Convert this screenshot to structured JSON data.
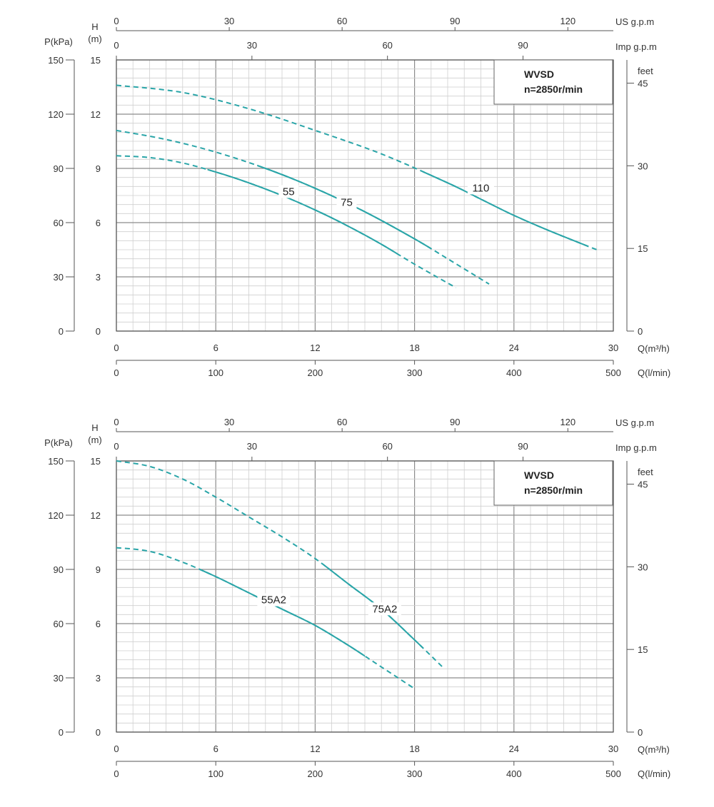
{
  "colors": {
    "curve": "#2aa5a8",
    "grid_major": "#8c8c8c",
    "grid_minor": "#cfcfcf",
    "axis": "#555555"
  },
  "chart_data": [
    {
      "type": "line",
      "info_box": {
        "line1": "WVSD",
        "line2": "n=2850r/min"
      },
      "axes": {
        "x_flow_m3h": {
          "label": "Q(m³/h)",
          "range": [
            0,
            30
          ],
          "ticks": [
            "0",
            "6",
            "12",
            "18",
            "24",
            "30"
          ]
        },
        "x_flow_lmin": {
          "label": "Q(l/min)",
          "range": [
            0,
            500
          ],
          "ticks": [
            "0",
            "100",
            "200",
            "300",
            "400",
            "500"
          ]
        },
        "x_us_gpm": {
          "label": "US g.p.m",
          "range": [
            0,
            132
          ],
          "ticks": [
            "0",
            "30",
            "60",
            "90",
            "120"
          ]
        },
        "x_imp_gpm": {
          "label": "Imp g.p.m",
          "range": [
            0,
            110
          ],
          "ticks": [
            "0",
            "30",
            "60",
            "90"
          ]
        },
        "y_head_m": {
          "label_top": "H",
          "label_bottom": "(m)",
          "range": [
            0,
            15
          ],
          "ticks": [
            "0",
            "3",
            "6",
            "9",
            "12",
            "15"
          ]
        },
        "y_pressure_kpa": {
          "label": "P(kPa)",
          "range": [
            0,
            150
          ],
          "ticks": [
            "0",
            "30",
            "60",
            "90",
            "120",
            "150"
          ]
        },
        "y_feet": {
          "label": "feet",
          "range": [
            0,
            49.2
          ],
          "ticks": [
            "0",
            "15",
            "30",
            "45"
          ]
        }
      },
      "series": [
        {
          "name": "55",
          "label_at": [
            10.4,
            7.6
          ],
          "x": [
            0,
            2,
            4,
            6,
            8,
            10,
            12,
            14,
            16,
            18,
            20.5
          ],
          "y": [
            9.7,
            9.6,
            9.3,
            8.8,
            8.2,
            7.5,
            6.7,
            5.8,
            4.8,
            3.7,
            2.4
          ],
          "solid_range": [
            5.5,
            17
          ]
        },
        {
          "name": "75",
          "label_at": [
            13.9,
            7.0
          ],
          "x": [
            0,
            3,
            6,
            9,
            12,
            15,
            18,
            20,
            22.5
          ],
          "y": [
            11.1,
            10.6,
            9.9,
            9.0,
            7.9,
            6.6,
            5.1,
            4.0,
            2.6
          ],
          "solid_range": [
            8.5,
            19
          ]
        },
        {
          "name": "110",
          "label_at": [
            22.0,
            7.8
          ],
          "x": [
            0,
            4,
            8,
            12,
            16,
            20,
            22,
            24,
            26,
            29
          ],
          "y": [
            13.6,
            13.2,
            12.3,
            11.1,
            9.8,
            8.2,
            7.3,
            6.4,
            5.6,
            4.5
          ],
          "solid_range": [
            18.5,
            28.5
          ]
        }
      ]
    },
    {
      "type": "line",
      "info_box": {
        "line1": "WVSD",
        "line2": "n=2850r/min"
      },
      "axes": {
        "x_flow_m3h": {
          "label": "Q(m³/h)",
          "range": [
            0,
            30
          ],
          "ticks": [
            "0",
            "6",
            "12",
            "18",
            "24",
            "30"
          ]
        },
        "x_flow_lmin": {
          "label": "Q(l/min)",
          "range": [
            0,
            500
          ],
          "ticks": [
            "0",
            "100",
            "200",
            "300",
            "400",
            "500"
          ]
        },
        "x_us_gpm": {
          "label": "US g.p.m",
          "range": [
            0,
            132
          ],
          "ticks": [
            "0",
            "30",
            "60",
            "90",
            "120"
          ]
        },
        "x_imp_gpm": {
          "label": "Imp g.p.m",
          "range": [
            0,
            110
          ],
          "ticks": [
            "0",
            "30",
            "60",
            "90"
          ]
        },
        "y_head_m": {
          "label_top": "H",
          "label_bottom": "(m)",
          "range": [
            0,
            15
          ],
          "ticks": [
            "0",
            "3",
            "6",
            "9",
            "12",
            "15"
          ]
        },
        "y_pressure_kpa": {
          "label": "P(kPa)",
          "range": [
            0,
            150
          ],
          "ticks": [
            "0",
            "30",
            "60",
            "90",
            "120",
            "150"
          ]
        },
        "y_feet": {
          "label": "feet",
          "range": [
            0,
            49.2
          ],
          "ticks": [
            "0",
            "15",
            "30",
            "45"
          ]
        }
      },
      "series": [
        {
          "name": "55A2",
          "label_at": [
            9.5,
            7.2
          ],
          "x": [
            0,
            2,
            4,
            6,
            8,
            10,
            12,
            14,
            16,
            18
          ],
          "y": [
            10.2,
            10.0,
            9.4,
            8.6,
            7.7,
            6.8,
            5.9,
            4.8,
            3.6,
            2.4
          ],
          "solid_range": [
            5,
            15
          ]
        },
        {
          "name": "75A2",
          "label_at": [
            16.2,
            6.7
          ],
          "x": [
            0,
            2,
            4,
            6,
            8,
            10,
            12,
            14,
            16,
            18,
            19.8
          ],
          "y": [
            15.0,
            14.7,
            14.0,
            13.0,
            11.9,
            10.8,
            9.6,
            8.2,
            6.8,
            5.1,
            3.5
          ],
          "solid_range": [
            12.5,
            18.5
          ]
        }
      ]
    }
  ]
}
